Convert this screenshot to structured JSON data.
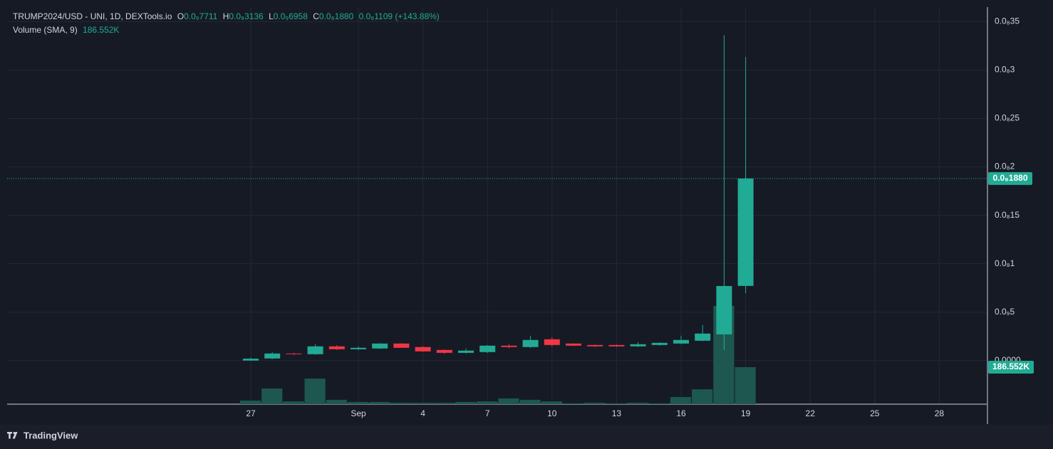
{
  "chart_data": {
    "type": "candlestick",
    "legend": {
      "symbol": "TRUMP2024/USD - UNI, 1D, DEXTools.io",
      "open_letter": "O",
      "open": "0.0₉7711",
      "high_letter": "H",
      "high": "0.0₈3136",
      "low_letter": "L",
      "low": "0.0₉6958",
      "close_letter": "C",
      "close": "0.0₈1880",
      "change": "0.0₈1109 (+143.88%)"
    },
    "categories": [
      "27",
      null,
      null,
      null,
      null,
      "Sep",
      null,
      null,
      "4",
      null,
      null,
      "7",
      null,
      null,
      "10",
      null,
      null,
      "13",
      null,
      null,
      "16",
      null,
      null,
      "19",
      null,
      null,
      "22",
      null,
      null,
      "25",
      null,
      null,
      "28",
      null,
      null
    ],
    "open": [
      0.0,
      2.2e-11,
      7.3e-11,
      6.6e-11,
      1.47e-10,
      1.17e-10,
      1.25e-10,
      1.76e-10,
      1.4e-10,
      1.1e-10,
      8e-11,
      8.8e-11,
      1.54e-10,
      1.4e-10,
      2.2e-10,
      1.76e-10,
      1.61e-10,
      1.61e-10,
      1.47e-10,
      1.61e-10,
      1.76e-10,
      2.05e-10,
      2.71e-10,
      7.711e-10,
      null,
      null,
      null,
      null,
      null,
      null,
      null,
      null,
      null,
      null,
      null
    ],
    "high": [
      3e-11,
      8.8e-11,
      8e-11,
      1.69e-10,
      1.6e-10,
      1.47e-10,
      1.8e-10,
      1.8e-10,
      1.47e-10,
      1.17e-10,
      1.25e-10,
      1.6e-10,
      1.7e-10,
      2.57e-10,
      2.42e-10,
      1.8e-10,
      1.65e-10,
      1.65e-10,
      1.9e-10,
      1.9e-10,
      2.57e-10,
      3.67e-10,
      3.36e-09,
      3.136e-09,
      null,
      null,
      null,
      null,
      null,
      null,
      null,
      null,
      null,
      null,
      null
    ],
    "low": [
      0.0,
      1.5e-11,
      6e-11,
      6e-11,
      1.1e-10,
      1.1e-10,
      1.2e-10,
      1.3e-10,
      9e-11,
      7e-11,
      7.3e-11,
      8e-11,
      1.25e-10,
      1.3e-10,
      1.47e-10,
      1.5e-10,
      1.4e-10,
      1.4e-10,
      1.4e-10,
      1.54e-10,
      1.7e-10,
      2e-10,
      1.1e-10,
      6.958e-10,
      null,
      null,
      null,
      null,
      null,
      null,
      null,
      null,
      null,
      null,
      null
    ],
    "close": [
      2e-11,
      7.3e-11,
      6.6e-11,
      1.47e-10,
      1.17e-10,
      1.32e-10,
      1.76e-10,
      1.32e-10,
      9.5e-11,
      8e-11,
      1.03e-10,
      1.54e-10,
      1.4e-10,
      2.13e-10,
      1.61e-10,
      1.54e-10,
      1.47e-10,
      1.47e-10,
      1.69e-10,
      1.83e-10,
      2.13e-10,
      2.79e-10,
      7.7e-10,
      1.88e-09,
      null,
      null,
      null,
      null,
      null,
      null,
      null,
      null,
      null,
      null,
      null
    ],
    "up_color": "#22ab94",
    "down_color": "#f23645",
    "last_price_label": "0.0₈1880",
    "volume": {
      "name": "Volume (SMA, 9)",
      "last_value_label": "186.552K",
      "color": "#1d5750",
      "values": [
        18000,
        79000,
        14000,
        129000,
        22000,
        11000,
        11000,
        7000,
        7000,
        7000,
        11000,
        14000,
        29000,
        22000,
        14000,
        4000,
        7000,
        4000,
        7000,
        4000,
        36000,
        75000,
        495000,
        186552,
        null,
        null,
        null,
        null,
        null,
        null,
        null,
        null,
        null,
        null,
        null
      ]
    },
    "ylim": [
      -4.5e-10,
      3.65e-09
    ],
    "yticks": [
      {
        "value": 0.0,
        "label": "0.0000"
      },
      {
        "value": 5e-10,
        "label": "0.0₉5"
      },
      {
        "value": 1e-09,
        "label": "0.0₈1"
      },
      {
        "value": 1.5e-09,
        "label": "0.0₈15"
      },
      {
        "value": 2e-09,
        "label": "0.0₈2"
      },
      {
        "value": 2.5e-09,
        "label": "0.0₈25"
      },
      {
        "value": 3e-09,
        "label": "0.0₈3"
      },
      {
        "value": 3.5e-09,
        "label": "0.0₈35"
      }
    ],
    "grid": true
  },
  "footer": {
    "brand": "TradingView"
  }
}
